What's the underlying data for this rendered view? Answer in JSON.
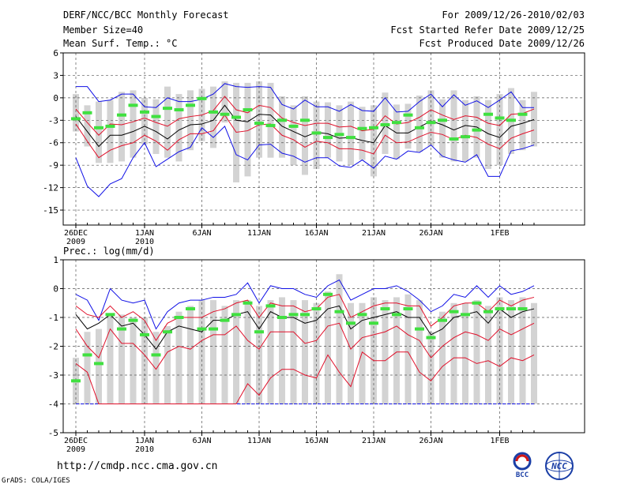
{
  "header": {
    "title": "DERF/NCC/BCC Monthly Forecast",
    "member_size": "Member Size=40",
    "variable_temp": "Mean Surf. Temp.: °C",
    "period": "For 2009/12/26-2010/02/03",
    "start_date": "Fcst Started Refer Date 2009/12/25",
    "produced_date": "Fcst Produced Date 2009/12/26"
  },
  "precip_title": "Prec.: log(mm/d)",
  "footer": {
    "url": "http://cmdp.ncc.cma.gov.cn",
    "credit": "GrADS: COLA/IGES",
    "logo_left": "BCC",
    "logo_right": "NCC"
  },
  "colors": {
    "box": "#d3d3d3",
    "median": "#000000",
    "quartile": "#e0102a",
    "extreme": "#1010e6",
    "obs": "#40e040",
    "grid": "#555555"
  },
  "chart_data": [
    {
      "type": "box-timeseries",
      "title": "Mean Surf. Temp.: °C",
      "x_days": 40,
      "x_tick_labels": [
        {
          "day": 0,
          "label": "26DEC",
          "sub": "2009"
        },
        {
          "day": 6,
          "label": "1JAN",
          "sub": "2010"
        },
        {
          "day": 11,
          "label": "6JAN",
          "sub": ""
        },
        {
          "day": 16,
          "label": "11JAN",
          "sub": ""
        },
        {
          "day": 21,
          "label": "16JAN",
          "sub": ""
        },
        {
          "day": 26,
          "label": "21JAN",
          "sub": ""
        },
        {
          "day": 31,
          "label": "26JAN",
          "sub": ""
        },
        {
          "day": 37,
          "label": "1FEB",
          "sub": ""
        }
      ],
      "ylim": [
        -17,
        6
      ],
      "y_ticks": [
        6,
        3,
        0,
        -3,
        -6,
        -9,
        -12,
        -15
      ],
      "grid_days": [
        0,
        6,
        11,
        16,
        21,
        26,
        31,
        37
      ],
      "grid_y": [
        3,
        0,
        -3,
        -6,
        -9,
        -12,
        -15
      ],
      "median": [
        -2.5,
        -4.5,
        -6.5,
        -5.0,
        -5.0,
        -4.5,
        -3.8,
        -4.5,
        -5.5,
        -4.3,
        -3.6,
        -3.5,
        -3.0,
        -1.0,
        -3.0,
        -3.2,
        -2.2,
        -2.3,
        -3.8,
        -4.5,
        -5.2,
        -4.6,
        -4.8,
        -5.4,
        -5.3,
        -5.7,
        -6.0,
        -3.7,
        -4.7,
        -4.7,
        -3.9,
        -3.1,
        -3.6,
        -4.3,
        -3.7,
        -3.9,
        -4.8,
        -5.3,
        -3.8,
        -3.4,
        -2.9
      ],
      "q_upper": [
        -1.5,
        -3.3,
        -5.0,
        -3.5,
        -3.6,
        -3.2,
        -2.7,
        -3.3,
        -3.8,
        -2.8,
        -2.5,
        -2.3,
        -1.7,
        0.2,
        -1.6,
        -2.0,
        -1.0,
        -1.3,
        -2.7,
        -3.3,
        -3.7,
        -3.4,
        -3.4,
        -3.9,
        -3.8,
        -4.4,
        -4.2,
        -2.4,
        -3.5,
        -3.3,
        -2.6,
        -1.6,
        -2.3,
        -2.9,
        -2.4,
        -2.6,
        -3.4,
        -3.7,
        -2.2,
        -2.1,
        -1.5
      ],
      "q_lower": [
        -3.5,
        -5.8,
        -8.0,
        -7.0,
        -6.4,
        -6.0,
        -5.0,
        -5.8,
        -7.0,
        -5.6,
        -4.8,
        -4.8,
        -4.4,
        -2.3,
        -4.6,
        -4.4,
        -3.6,
        -3.5,
        -5.0,
        -5.6,
        -6.6,
        -5.8,
        -6.0,
        -6.8,
        -6.8,
        -7.0,
        -7.5,
        -5.0,
        -6.0,
        -5.9,
        -5.2,
        -4.6,
        -4.9,
        -5.6,
        -5.0,
        -5.3,
        -6.2,
        -6.8,
        -5.4,
        -4.8,
        -4.3
      ],
      "max": [
        1.5,
        1.5,
        -0.5,
        -0.3,
        0.5,
        0.5,
        -1.2,
        -1.3,
        0.0,
        -0.5,
        -0.5,
        -0.2,
        0.5,
        1.9,
        1.5,
        1.4,
        1.5,
        1.4,
        -0.9,
        -1.5,
        -0.3,
        -1.2,
        -1.2,
        -1.8,
        -0.9,
        -1.7,
        -1.8,
        0.0,
        -1.9,
        -1.8,
        -0.5,
        0.5,
        -1.2,
        0.4,
        -1.0,
        -0.4,
        -1.3,
        -0.3,
        0.8,
        -1.3,
        -1.3
      ],
      "min": [
        -8.0,
        -11.8,
        -13.2,
        -11.5,
        -10.8,
        -8.0,
        -6.0,
        -9.2,
        -8.2,
        -7.2,
        -6.6,
        -4.0,
        -5.3,
        -3.8,
        -7.6,
        -8.3,
        -6.3,
        -6.2,
        -7.4,
        -7.8,
        -8.6,
        -8.0,
        -8.0,
        -9.1,
        -9.3,
        -8.3,
        -9.4,
        -7.8,
        -8.2,
        -7.1,
        -7.3,
        -6.3,
        -7.8,
        -8.3,
        -8.6,
        -7.6,
        -10.5,
        -10.5,
        -7.1,
        -6.8,
        -6.3
      ],
      "box_top": [
        0.5,
        -1.0,
        -0.5,
        -0.3,
        0.8,
        1.0,
        0.0,
        -0.2,
        1.5,
        0.5,
        1.0,
        1.2,
        1.5,
        2.2,
        2.0,
        2.0,
        2.2,
        2.0,
        0.2,
        -1.0,
        0.2,
        -0.5,
        -0.6,
        -1.0,
        -0.5,
        -1.2,
        -1.0,
        0.7,
        -0.9,
        -0.8,
        0.3,
        1.0,
        -0.2,
        1.0,
        -0.3,
        0.2,
        -0.3,
        0.5,
        1.3,
        -0.3,
        0.8
      ],
      "box_bottom": [
        -4.5,
        -6.5,
        -8.7,
        -8.7,
        -8.5,
        -8.0,
        -6.2,
        -7.5,
        -8.0,
        -8.5,
        -7.0,
        -5.8,
        -6.7,
        -3.3,
        -11.3,
        -10.5,
        -8.0,
        -8.0,
        -8.0,
        -9.0,
        -10.3,
        -9.5,
        -8.0,
        -8.5,
        -9.0,
        -8.3,
        -10.5,
        -7.5,
        -8.2,
        -6.8,
        -7.2,
        -6.5,
        -8.0,
        -8.5,
        -8.5,
        -8.0,
        -9.5,
        -9.0,
        -7.5,
        -7.0,
        -6.5
      ],
      "obs": [
        -2.8,
        -2.0,
        -4.0,
        -3.8,
        -2.3,
        -1.0,
        -1.9,
        -2.5,
        -1.4,
        -1.6,
        -1.0,
        -0.1,
        -1.9,
        -2.2,
        -2.6,
        -1.6,
        -3.4,
        -3.7,
        -3.0,
        -3.8,
        -3.0,
        -4.7,
        -5.3,
        -4.9,
        -5.3,
        -4.1,
        -4.0,
        -3.6,
        -3.3,
        -2.3,
        -4.0,
        -3.3,
        -3.0,
        -5.5,
        -5.2,
        -4.3,
        -2.2,
        -2.7,
        -3.0,
        -2.2
      ]
    },
    {
      "type": "box-timeseries",
      "title": "Prec.: log(mm/d)",
      "x_days": 40,
      "x_tick_labels": [
        {
          "day": 0,
          "label": "26DEC",
          "sub": "2009"
        },
        {
          "day": 6,
          "label": "1JAN",
          "sub": "2010"
        },
        {
          "day": 11,
          "label": "6JAN",
          "sub": ""
        },
        {
          "day": 16,
          "label": "11JAN",
          "sub": ""
        },
        {
          "day": 21,
          "label": "16JAN",
          "sub": ""
        },
        {
          "day": 26,
          "label": "21JAN",
          "sub": ""
        },
        {
          "day": 31,
          "label": "26JAN",
          "sub": ""
        },
        {
          "day": 37,
          "label": "1FEB",
          "sub": ""
        }
      ],
      "ylim": [
        -5,
        1
      ],
      "y_ticks": [
        1,
        0,
        -1,
        -2,
        -3,
        -4,
        -5
      ],
      "grid_days": [
        0,
        6,
        11,
        16,
        21,
        26,
        31,
        37
      ],
      "grid_y": [
        0,
        -1,
        -2,
        -3,
        -4
      ],
      "floor": -4,
      "median": [
        -0.9,
        -1.4,
        -1.2,
        -0.9,
        -1.3,
        -1.2,
        -1.6,
        -2.1,
        -1.5,
        -1.3,
        -1.4,
        -1.5,
        -1.1,
        -1.1,
        -0.9,
        -0.8,
        -1.4,
        -0.8,
        -1.0,
        -1.0,
        -1.2,
        -1.1,
        -0.7,
        -0.6,
        -1.4,
        -1.1,
        -1.0,
        -0.9,
        -0.8,
        -1.0,
        -1.0,
        -1.6,
        -1.4,
        -1.0,
        -0.9,
        -0.8,
        -1.2,
        -0.7,
        -1.0,
        -0.8,
        -0.7
      ],
      "q_upper": [
        -0.6,
        -0.9,
        -1.0,
        -0.6,
        -1.0,
        -0.8,
        -1.1,
        -1.8,
        -1.2,
        -1.0,
        -1.0,
        -1.0,
        -0.8,
        -0.7,
        -0.5,
        -0.4,
        -1.0,
        -0.5,
        -0.6,
        -0.6,
        -0.8,
        -0.7,
        -0.3,
        -0.2,
        -1.0,
        -0.8,
        -0.6,
        -0.5,
        -0.5,
        -0.6,
        -0.6,
        -1.3,
        -1.0,
        -0.6,
        -0.5,
        -0.5,
        -0.8,
        -0.4,
        -0.6,
        -0.4,
        -0.3
      ],
      "q_lower": [
        -1.4,
        -2.0,
        -2.4,
        -1.4,
        -1.9,
        -1.9,
        -2.3,
        -2.8,
        -2.2,
        -2.0,
        -2.1,
        -1.8,
        -1.6,
        -1.6,
        -1.3,
        -1.8,
        -2.1,
        -1.5,
        -1.5,
        -1.5,
        -1.9,
        -1.8,
        -1.3,
        -1.2,
        -2.1,
        -1.7,
        -1.6,
        -1.5,
        -1.3,
        -1.6,
        -1.8,
        -2.4,
        -2.0,
        -1.7,
        -1.5,
        -1.6,
        -1.8,
        -1.4,
        -1.6,
        -1.4,
        -1.2
      ],
      "max": [
        -0.2,
        -0.4,
        -1.1,
        0.0,
        -0.4,
        -0.5,
        -0.4,
        -1.4,
        -0.8,
        -0.5,
        -0.4,
        -0.4,
        -0.3,
        -0.3,
        -0.2,
        0.2,
        -0.5,
        0.1,
        0.0,
        0.0,
        -0.2,
        -0.3,
        0.1,
        0.3,
        -0.4,
        -0.2,
        0.0,
        0.0,
        0.1,
        -0.1,
        -0.4,
        -0.8,
        -0.6,
        -0.2,
        -0.3,
        0.1,
        -0.3,
        0.1,
        -0.2,
        -0.1,
        0.1
      ],
      "q10": [
        -2.6,
        -2.9,
        -4.0,
        -4.0,
        -4.0,
        -4.0,
        -4.0,
        -4.0,
        -4.0,
        -4.0,
        -4.0,
        -4.0,
        -4.0,
        -4.0,
        -4.0,
        -3.3,
        -3.7,
        -3.1,
        -2.8,
        -2.8,
        -3.0,
        -3.1,
        -2.3,
        -2.9,
        -3.4,
        -2.2,
        -2.5,
        -2.5,
        -2.2,
        -2.2,
        -2.9,
        -3.2,
        -2.7,
        -2.4,
        -2.4,
        -2.6,
        -2.5,
        -2.7,
        -2.4,
        -2.5,
        -2.3
      ],
      "box_top": [
        -2.4,
        -1.5,
        -1.4,
        -0.9,
        -0.9,
        -1.0,
        -1.0,
        -1.5,
        -1.3,
        -0.8,
        -0.6,
        -0.4,
        -0.4,
        -0.6,
        -0.4,
        -0.4,
        -0.6,
        -0.4,
        -0.3,
        -0.4,
        -0.4,
        -0.5,
        -0.1,
        0.5,
        -0.5,
        -0.5,
        -0.3,
        -0.4,
        -0.3,
        -0.2,
        -0.4,
        -1.5,
        -0.8,
        -0.5,
        -0.5,
        -0.4,
        -0.6,
        -0.3,
        -0.4,
        -0.3,
        -0.5
      ],
      "box_bottom": [
        -4.0,
        -4.0,
        -4.0,
        -4.0,
        -4.0,
        -4.0,
        -4.0,
        -4.0,
        -4.0,
        -4.0,
        -4.0,
        -4.0,
        -4.0,
        -4.0,
        -4.0,
        -4.0,
        -4.0,
        -4.0,
        -4.0,
        -4.0,
        -4.0,
        -4.0,
        -4.0,
        -4.0,
        -4.0,
        -4.0,
        -4.0,
        -4.0,
        -4.0,
        -4.0,
        -4.0,
        -4.0,
        -4.0,
        -4.0,
        -4.0,
        -4.0,
        -4.0,
        -4.0,
        -4.0,
        -4.0,
        -4.0
      ],
      "obs": [
        -3.2,
        -2.3,
        -2.6,
        -0.9,
        -1.4,
        -1.1,
        -1.6,
        -2.3,
        -1.5,
        -1.0,
        -0.7,
        -1.4,
        -1.4,
        -1.1,
        -0.9,
        -0.5,
        -1.5,
        -0.6,
        -1.0,
        -0.9,
        -0.9,
        -0.7,
        -0.2,
        -0.8,
        -1.2,
        -0.9,
        -1.2,
        -0.7,
        -0.9,
        -0.7,
        -1.4,
        -1.7,
        -1.1,
        -0.8,
        -0.9,
        -0.5,
        -0.8,
        -0.7,
        -0.7,
        -0.7
      ]
    }
  ]
}
